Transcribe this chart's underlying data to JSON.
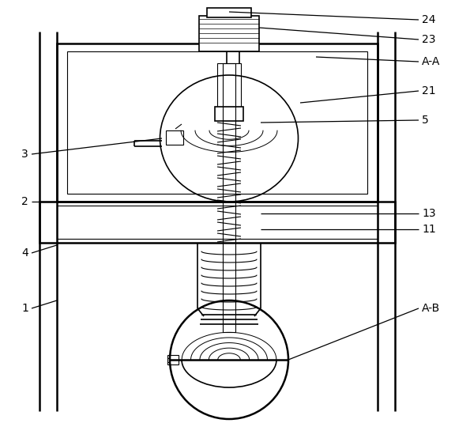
{
  "fig_width": 5.76,
  "fig_height": 5.35,
  "dpi": 100,
  "line_color": "#000000",
  "bg_color": "#ffffff"
}
